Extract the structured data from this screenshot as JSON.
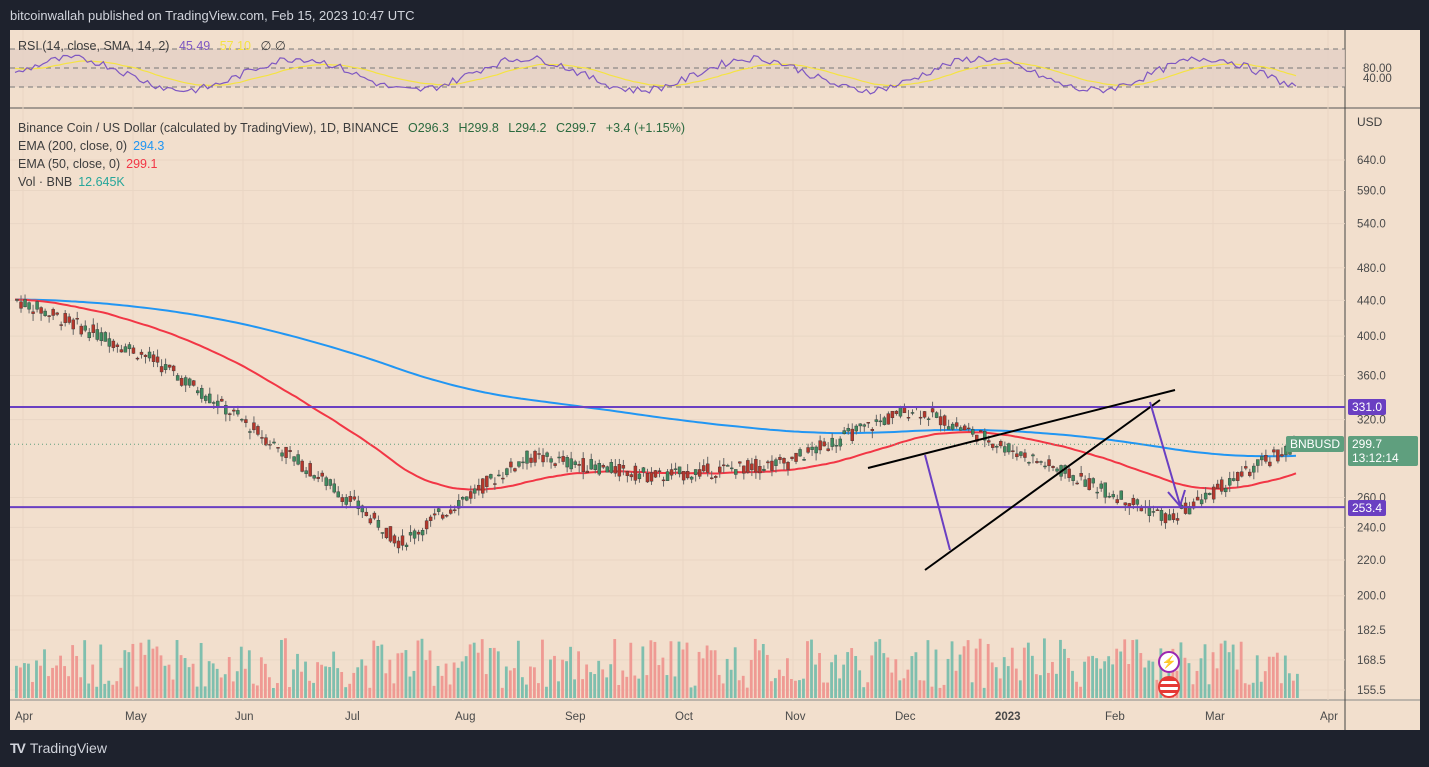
{
  "header": {
    "publisher": "bitcoinwallah published on TradingView.com, Feb 15, 2023 10:47 UTC"
  },
  "footer": {
    "logo_text": "TV",
    "brand": "TradingView"
  },
  "colors": {
    "background": "#f2dfcd",
    "page_bg": "#1e222d",
    "up": "#3f8a5f",
    "down": "#b5372c",
    "ema200": "#2196f3",
    "ema50": "#f23645",
    "rsi": "#7e57c2",
    "rsi_sma": "#f5e342",
    "levels": "#6a3fc2",
    "vol_up": "#7fbfae",
    "vol_down": "#ef9a93",
    "price_tag": "#5f9f7e"
  },
  "rsi_panel": {
    "title": "RSI (14, close, SMA, 14, 2)",
    "rsi_value": "45.49",
    "sma_value": "57.10",
    "extra": "∅ ∅",
    "axis": [
      "80.00",
      "40.00"
    ]
  },
  "main_panel": {
    "title": "Binance Coin / US Dollar (calculated by TradingView), 1D, BINANCE",
    "ohlc": {
      "o": "O296.3",
      "h": "H299.8",
      "l": "L294.2",
      "c": "C299.7",
      "chg": "+3.4 (+1.15%)"
    },
    "ema200": {
      "label": "EMA (200, close, 0)",
      "value": "294.3"
    },
    "ema50": {
      "label": "EMA (50, close, 0)",
      "value": "299.1"
    },
    "vol": {
      "label": "Vol · BNB",
      "value": "12.645K"
    },
    "currency": "USD",
    "symbol_tag": "BNBUSD",
    "last_price": "299.7",
    "countdown": "13:12:14",
    "level_high": "331.0",
    "level_low": "253.4"
  },
  "chart_data": {
    "type": "candlestick",
    "title": "Binance Coin / US Dollar, 1D, BINANCE",
    "price_axis_ticks": [
      640.0,
      590.0,
      540.0,
      480.0,
      440.0,
      400.0,
      360.0,
      320.0,
      260.0,
      240.0,
      220.0,
      200.0,
      182.5,
      168.5,
      155.5
    ],
    "price_axis_labels": [
      "640.0",
      "590.0",
      "540.0",
      "480.0",
      "440.0",
      "400.0",
      "360.0",
      "320.0",
      "260.0",
      "240.0",
      "220.0",
      "200.0",
      "182.5",
      "168.5",
      "155.5"
    ],
    "time_axis_labels": [
      "Apr",
      "May",
      "Jun",
      "Jul",
      "Aug",
      "Sep",
      "Oct",
      "Nov",
      "Dec",
      "2023",
      "Feb",
      "Mar",
      "Apr"
    ],
    "horizontal_levels": [
      331.0,
      253.4
    ],
    "close_series_monthly": {
      "x": [
        "Apr",
        "May",
        "Jun",
        "Jul",
        "Aug",
        "Sep",
        "Oct",
        "Nov",
        "Dec",
        "Jan",
        "Feb"
      ],
      "close": [
        440,
        380,
        300,
        230,
        290,
        275,
        285,
        330,
        285,
        245,
        300
      ]
    },
    "annotations": [
      "rising wedge (black trendlines)",
      "purple arrow down to 253.4 target",
      "purple arrow down Dec to ~225"
    ],
    "last": {
      "open": 296.3,
      "high": 299.8,
      "low": 294.2,
      "close": 299.7,
      "change": 3.4,
      "change_pct": 1.15
    }
  }
}
